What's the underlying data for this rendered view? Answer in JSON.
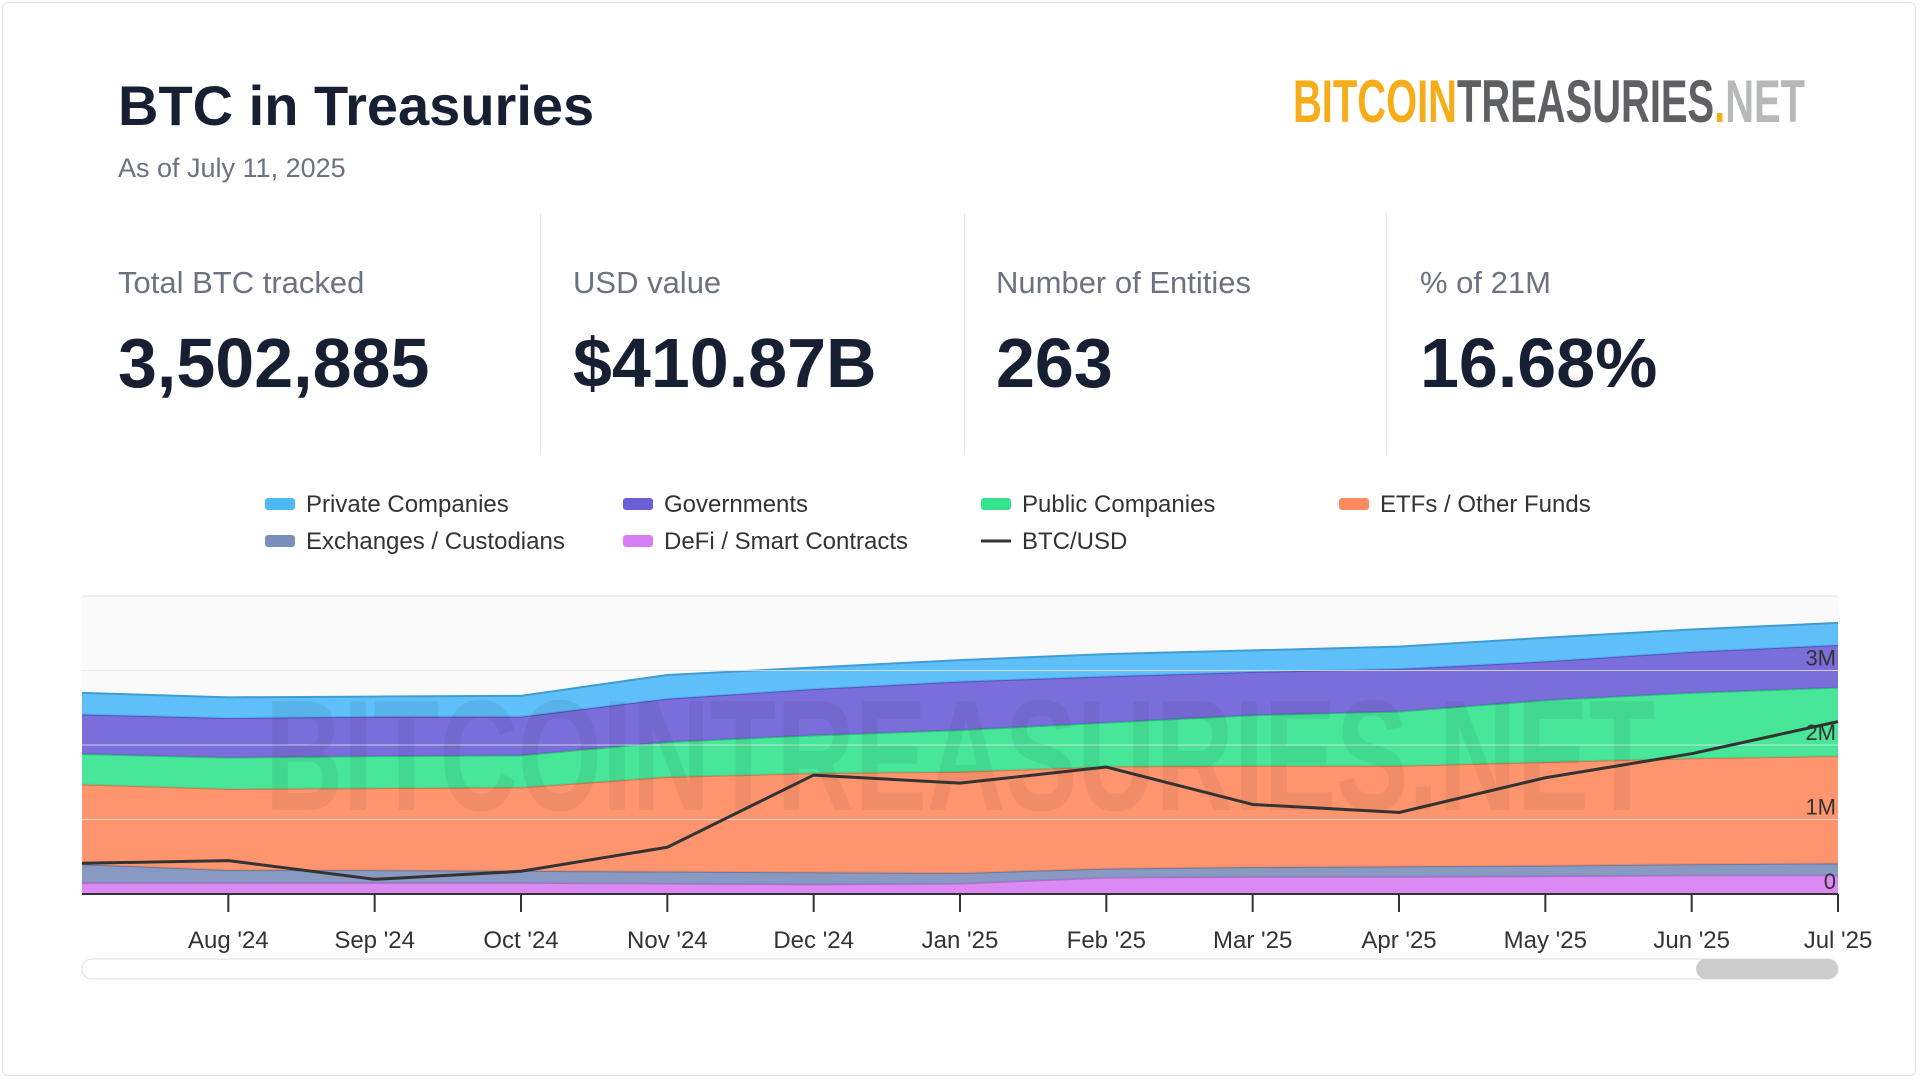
{
  "header": {
    "title": "BTC in Treasuries",
    "subtitle": "As of July 11, 2025",
    "logo": [
      "BITCOIN",
      "TREASURIES",
      ".",
      "NET"
    ]
  },
  "stats": [
    {
      "label": "Total BTC tracked",
      "value": "3,502,885"
    },
    {
      "label": "USD value",
      "value": "$410.87B"
    },
    {
      "label": "Number of Entities",
      "value": "263"
    },
    {
      "label": "% of 21M",
      "value": "16.68%"
    }
  ],
  "chart_data": {
    "type": "area",
    "stacked": true,
    "grid": true,
    "watermark": "BITCOINTREASURIES.NET",
    "x": [
      "2024-07",
      "2024-08",
      "2024-09",
      "2024-10",
      "2024-11",
      "2024-12",
      "2025-01",
      "2025-02",
      "2025-03",
      "2025-04",
      "2025-05",
      "2025-06",
      "2025-07"
    ],
    "xlim": [
      "2024-07",
      "2025-07"
    ],
    "xticks": [
      {
        "value": "2024-08",
        "label": "Aug '24"
      },
      {
        "value": "2024-09",
        "label": "Sep '24"
      },
      {
        "value": "2024-10",
        "label": "Oct '24"
      },
      {
        "value": "2024-11",
        "label": "Nov '24"
      },
      {
        "value": "2024-12",
        "label": "Dec '24"
      },
      {
        "value": "2025-01",
        "label": "Jan '25"
      },
      {
        "value": "2025-02",
        "label": "Feb '25"
      },
      {
        "value": "2025-03",
        "label": "Mar '25"
      },
      {
        "value": "2025-04",
        "label": "Apr '25"
      },
      {
        "value": "2025-05",
        "label": "May '25"
      },
      {
        "value": "2025-06",
        "label": "Jun '25"
      },
      {
        "value": "2025-07",
        "label": "Jul '25"
      }
    ],
    "ylim": [
      0,
      4000000
    ],
    "yticks": [
      0,
      {
        "value": 1000000,
        "label": "1M"
      },
      {
        "value": 2000000,
        "label": "2M"
      },
      {
        "value": 3000000,
        "label": "3M"
      }
    ],
    "y2lim": [
      52500,
      164000
    ],
    "series": [
      {
        "name": "Private Companies",
        "color": "#4db8f8",
        "values": [
          290000,
          280000,
          270000,
          280000,
          320000,
          290000,
          290000,
          300000,
          290000,
          300000,
          320000,
          300000,
          300000
        ]
      },
      {
        "name": "Governments",
        "color": "#6b5fd6",
        "values": [
          530000,
          530000,
          530000,
          520000,
          580000,
          620000,
          650000,
          620000,
          580000,
          570000,
          520000,
          550000,
          570000
        ]
      },
      {
        "name": "Public Companies",
        "color": "#33e38e",
        "values": [
          410000,
          420000,
          430000,
          430000,
          470000,
          510000,
          560000,
          590000,
          680000,
          730000,
          830000,
          880000,
          920000
        ]
      },
      {
        "name": "ETFs / Other Funds",
        "color": "#ff8a5e",
        "values": [
          1070000,
          1090000,
          1100000,
          1120000,
          1270000,
          1330000,
          1360000,
          1370000,
          1360000,
          1350000,
          1390000,
          1420000,
          1440000
        ]
      },
      {
        "name": "Exchanges / Custodians",
        "color": "#7b8fba",
        "values": [
          250000,
          170000,
          170000,
          160000,
          160000,
          160000,
          140000,
          120000,
          130000,
          140000,
          140000,
          150000,
          160000
        ]
      },
      {
        "name": "DeFi / Smart Contracts",
        "color": "#d77df3",
        "values": [
          150000,
          150000,
          150000,
          150000,
          140000,
          130000,
          140000,
          220000,
          230000,
          230000,
          240000,
          250000,
          250000
        ]
      },
      {
        "name": "BTC/USD",
        "color": "#333333",
        "axis": "y2",
        "values": [
          64000,
          65000,
          58000,
          61000,
          70000,
          97000,
          94000,
          100000,
          86000,
          83000,
          96000,
          105000,
          117000
        ]
      }
    ]
  }
}
